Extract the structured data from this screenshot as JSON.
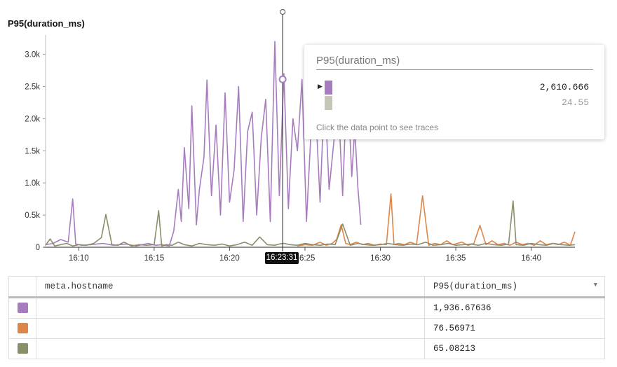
{
  "chart_data": {
    "type": "line",
    "ylabel": "P95(duration_ms)",
    "y_ticks": [
      "0",
      "0.5k",
      "1.0k",
      "1.5k",
      "2.0k",
      "2.5k",
      "3.0k"
    ],
    "ylim": [
      0,
      3300
    ],
    "x_ticks": [
      "16:10",
      "16:15",
      "16:20",
      "16:25",
      "16:30",
      "16:35",
      "16:40"
    ],
    "grid": false,
    "series": [
      {
        "color": "#a77cbf",
        "t": [
          7.8,
          8.3,
          8.8,
          9.3,
          9.6,
          9.8,
          10.2,
          10.8,
          11.6,
          12.3,
          13.1,
          13.8,
          14.6,
          15.1,
          15.5,
          16.0,
          16.3,
          16.6,
          16.8,
          17.0,
          17.3,
          17.5,
          17.8,
          18.0,
          18.3,
          18.5,
          18.8,
          19.1,
          19.4,
          19.7,
          20.0,
          20.3,
          20.6,
          20.9,
          21.2,
          21.5,
          21.8,
          22.1,
          22.4,
          22.7,
          23.0,
          23.3,
          23.6,
          23.9,
          24.2,
          24.5,
          24.8,
          25.1,
          25.4,
          25.7,
          26.0,
          26.3,
          26.6,
          26.9,
          27.2,
          27.5,
          27.8,
          28.1,
          28.3,
          28.5,
          28.7
        ],
        "values": [
          40,
          60,
          120,
          80,
          750,
          50,
          30,
          40,
          60,
          30,
          50,
          20,
          60,
          30,
          40,
          20,
          250,
          900,
          400,
          1550,
          600,
          2200,
          350,
          900,
          1400,
          2600,
          800,
          1900,
          500,
          2400,
          700,
          1200,
          2500,
          400,
          1800,
          2100,
          500,
          1700,
          2300,
          400,
          3200,
          800,
          2700,
          600,
          2000,
          1500,
          2610,
          400,
          1800,
          2200,
          700,
          2500,
          900,
          1600,
          2300,
          800,
          2700,
          1100,
          1850,
          950,
          350
        ]
      },
      {
        "color": "#e08548",
        "t": [
          24.5,
          25.0,
          25.5,
          26.0,
          26.4,
          26.8,
          27.1,
          27.4,
          27.7,
          28.0,
          28.4,
          28.8,
          29.2,
          29.6,
          30.0,
          30.4,
          30.7,
          30.9,
          31.2,
          31.6,
          32.0,
          32.4,
          32.8,
          33.2,
          33.6,
          34.0,
          34.4,
          34.8,
          35.1,
          35.4,
          35.8,
          36.2,
          36.6,
          37.0,
          37.4,
          37.8,
          38.2,
          38.6,
          39.0,
          39.4,
          39.8,
          40.2,
          40.6,
          41.0,
          41.4,
          41.8,
          42.2,
          42.6,
          42.9
        ],
        "values": [
          20,
          40,
          30,
          80,
          30,
          60,
          120,
          350,
          60,
          40,
          80,
          40,
          60,
          30,
          50,
          40,
          830,
          40,
          60,
          40,
          80,
          40,
          800,
          30,
          60,
          40,
          100,
          40,
          60,
          80,
          30,
          60,
          340,
          40,
          100,
          40,
          60,
          30,
          80,
          40,
          60,
          30,
          100,
          40,
          60,
          40,
          80,
          30,
          240
        ]
      },
      {
        "color": "#8a8f6a",
        "t": [
          7.8,
          8.1,
          8.4,
          8.8,
          9.2,
          9.6,
          10.0,
          10.5,
          11.0,
          11.5,
          11.8,
          12.2,
          12.6,
          13.0,
          13.5,
          14.0,
          14.5,
          15.0,
          15.3,
          15.5,
          15.8,
          16.2,
          16.6,
          17.0,
          17.5,
          18.0,
          18.5,
          19.0,
          19.5,
          20.0,
          20.5,
          21.0,
          21.5,
          22.0,
          22.5,
          23.0,
          23.3,
          23.6,
          24.0,
          24.5,
          25.0,
          25.5,
          26.0,
          26.5,
          27.0,
          27.5,
          28.0,
          28.5,
          29.0,
          29.5,
          30.0,
          30.5,
          31.0,
          31.5,
          32.0,
          32.5,
          33.0,
          33.5,
          34.0,
          34.5,
          35.0,
          35.5,
          36.0,
          36.5,
          37.0,
          37.5,
          38.0,
          38.5,
          38.8,
          39.0,
          39.5,
          40.0,
          40.5,
          41.0,
          41.5,
          42.0,
          42.5,
          42.9
        ],
        "values": [
          30,
          130,
          20,
          40,
          60,
          20,
          40,
          30,
          60,
          150,
          510,
          40,
          30,
          80,
          20,
          40,
          30,
          40,
          570,
          20,
          40,
          30,
          80,
          40,
          20,
          60,
          40,
          30,
          50,
          20,
          40,
          80,
          30,
          160,
          40,
          30,
          50,
          60,
          40,
          30,
          60,
          40,
          30,
          50,
          40,
          360,
          30,
          60,
          40,
          30,
          40,
          60,
          40,
          30,
          50,
          40,
          80,
          30,
          40,
          60,
          30,
          40,
          50,
          30,
          60,
          40,
          30,
          50,
          720,
          40,
          30,
          60,
          40,
          30,
          60,
          40,
          30,
          40
        ]
      }
    ],
    "marker_x": 23.52,
    "marker_y": 2610.666
  },
  "tooltip": {
    "title": "P95(duration_ms)",
    "rows": [
      {
        "color": "#a77cbf",
        "value": "2,610.666",
        "highlight": true
      },
      {
        "color": "#c5c6b8",
        "value": "24.55",
        "highlight": false
      }
    ],
    "hint": "Click the data point to see traces"
  },
  "time_badge": "16:23:31",
  "table": {
    "headers": [
      "meta.hostname",
      "P95(duration_ms)"
    ],
    "rows": [
      {
        "color": "#a77cbf",
        "value": "1,936.67636"
      },
      {
        "color": "#e08548",
        "value": "76.56971"
      },
      {
        "color": "#8a8f6a",
        "value": "65.08213"
      }
    ]
  }
}
